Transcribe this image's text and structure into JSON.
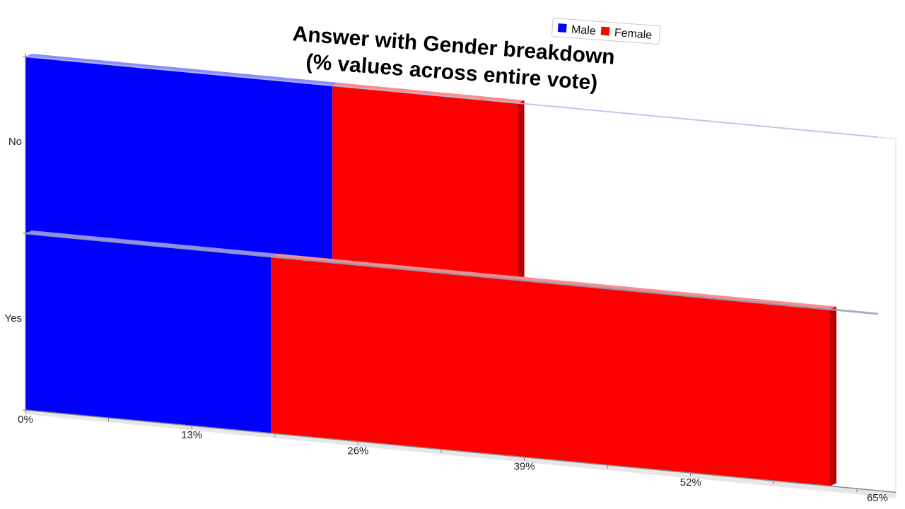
{
  "chart_data": {
    "type": "bar",
    "orientation": "horizontal",
    "stacked": true,
    "title_lines": [
      "Answer with Gender breakdown",
      "(% values across entire vote)"
    ],
    "categories": [
      "No",
      "Yes"
    ],
    "series": [
      {
        "name": "Male",
        "color": "#0000ff",
        "values": [
          24.0,
          19.2
        ]
      },
      {
        "name": "Female",
        "color": "#ff0000",
        "values": [
          14.5,
          43.7
        ]
      }
    ],
    "x_ticks": [
      "0%",
      "13%",
      "26%",
      "39%",
      "52%",
      "65%"
    ],
    "x_tick_values": [
      0,
      13,
      26,
      39,
      52,
      65
    ],
    "xlim": [
      0,
      65
    ],
    "xlabel": "",
    "ylabel": "",
    "legend_position": "top-right",
    "grid": false
  }
}
